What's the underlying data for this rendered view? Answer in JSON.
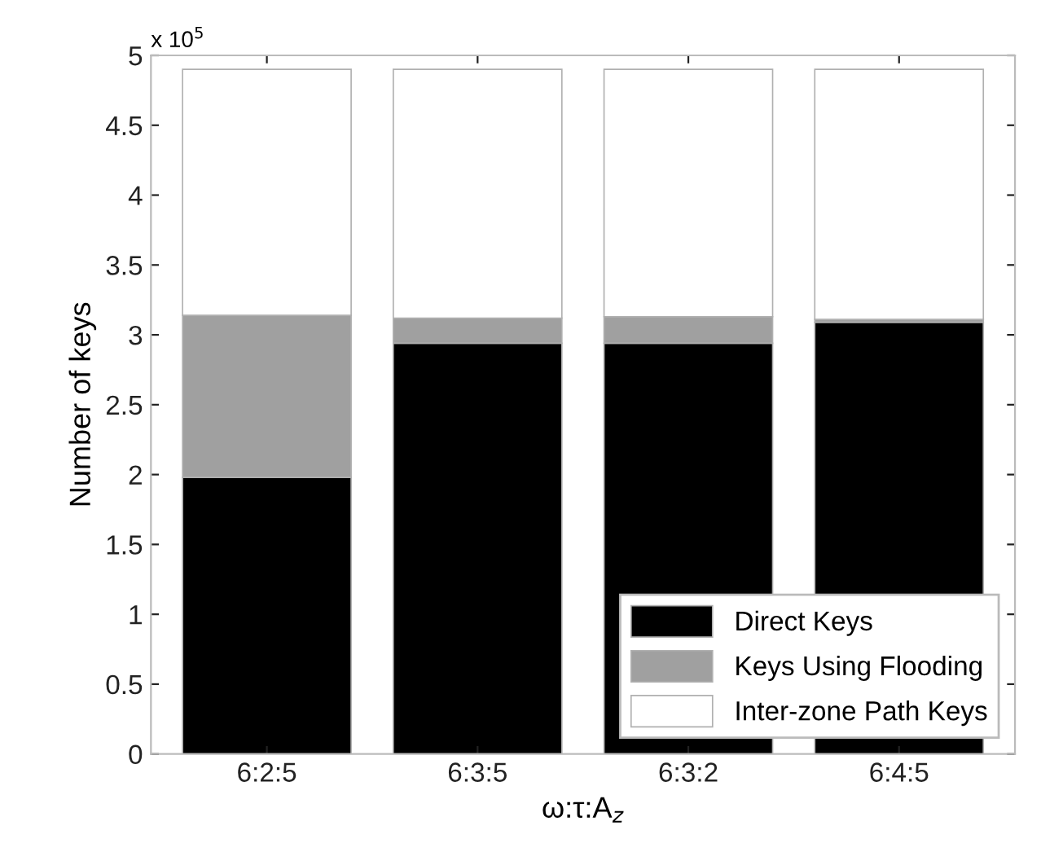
{
  "chart_data": {
    "type": "bar",
    "stacked": true,
    "xlabel": "ω:τ:A$_{z}$",
    "ylabel": "Number of keys",
    "categories": [
      "6:2:5",
      "6:3:5",
      "6:3:2",
      "6:4:5"
    ],
    "series": [
      {
        "name": "Direct Keys",
        "color": "#000000",
        "values": [
          1.98,
          2.94,
          2.94,
          3.09
        ]
      },
      {
        "name": "Keys Using Flooding",
        "color": "#a0a0a0",
        "values": [
          1.16,
          0.18,
          0.19,
          0.02
        ]
      },
      {
        "name": "Inter-zone Path Keys",
        "color": "#ffffff",
        "values": [
          1.76,
          1.78,
          1.77,
          1.79
        ]
      }
    ],
    "ylim": [
      0,
      5
    ],
    "yticks": [
      0,
      0.5,
      1,
      1.5,
      2,
      2.5,
      3,
      3.5,
      4,
      4.5,
      5
    ],
    "annotations": [
      "x 10$^{5}$"
    ],
    "legend": "bottom right",
    "grid": false
  }
}
